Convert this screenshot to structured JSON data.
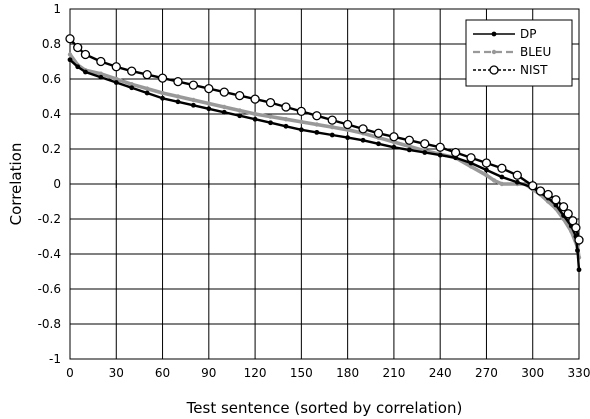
{
  "chart_data": {
    "type": "line",
    "title": "",
    "xlabel": "Test sentence (sorted by correlation)",
    "ylabel": "Correlation",
    "xlim": [
      0,
      330
    ],
    "ylim": [
      -1,
      1
    ],
    "x_ticks": [
      0,
      30,
      60,
      90,
      120,
      150,
      180,
      210,
      240,
      270,
      300,
      330
    ],
    "y_ticks": [
      -1,
      -0.8,
      -0.6,
      -0.4,
      -0.2,
      0,
      0.2,
      0.4,
      0.6,
      0.8,
      1
    ],
    "grid": true,
    "legend": "top-right",
    "series": [
      {
        "name": "DP",
        "color": "#000000",
        "marker": "filled-dot",
        "points": [
          [
            0,
            0.71
          ],
          [
            5,
            0.67
          ],
          [
            10,
            0.64
          ],
          [
            20,
            0.61
          ],
          [
            30,
            0.58
          ],
          [
            40,
            0.55
          ],
          [
            50,
            0.52
          ],
          [
            60,
            0.49
          ],
          [
            70,
            0.47
          ],
          [
            80,
            0.45
          ],
          [
            90,
            0.43
          ],
          [
            100,
            0.41
          ],
          [
            110,
            0.39
          ],
          [
            120,
            0.37
          ],
          [
            130,
            0.35
          ],
          [
            140,
            0.33
          ],
          [
            150,
            0.31
          ],
          [
            160,
            0.295
          ],
          [
            170,
            0.28
          ],
          [
            180,
            0.265
          ],
          [
            190,
            0.25
          ],
          [
            200,
            0.23
          ],
          [
            210,
            0.21
          ],
          [
            220,
            0.195
          ],
          [
            230,
            0.18
          ],
          [
            240,
            0.165
          ],
          [
            250,
            0.15
          ],
          [
            260,
            0.12
          ],
          [
            270,
            0.08
          ],
          [
            280,
            0.04
          ],
          [
            290,
            0.01
          ],
          [
            300,
            -0.02
          ],
          [
            305,
            -0.05
          ],
          [
            310,
            -0.08
          ],
          [
            315,
            -0.12
          ],
          [
            320,
            -0.18
          ],
          [
            325,
            -0.24
          ],
          [
            328,
            -0.3
          ],
          [
            329,
            -0.38
          ],
          [
            330,
            -0.49
          ]
        ]
      },
      {
        "name": "BLEU",
        "color": "#999999",
        "marker": "dash-dot",
        "points": [
          [
            0,
            0.74
          ],
          [
            5,
            0.68
          ],
          [
            10,
            0.65
          ],
          [
            20,
            0.63
          ],
          [
            30,
            0.6
          ],
          [
            40,
            0.57
          ],
          [
            50,
            0.545
          ],
          [
            60,
            0.52
          ],
          [
            70,
            0.5
          ],
          [
            80,
            0.48
          ],
          [
            90,
            0.46
          ],
          [
            100,
            0.44
          ],
          [
            110,
            0.42
          ],
          [
            120,
            0.4
          ],
          [
            130,
            0.385
          ],
          [
            140,
            0.37
          ],
          [
            150,
            0.355
          ],
          [
            160,
            0.34
          ],
          [
            170,
            0.325
          ],
          [
            180,
            0.31
          ],
          [
            190,
            0.29
          ],
          [
            200,
            0.265
          ],
          [
            210,
            0.24
          ],
          [
            220,
            0.215
          ],
          [
            230,
            0.19
          ],
          [
            240,
            0.17
          ],
          [
            250,
            0.15
          ],
          [
            260,
            0.1
          ],
          [
            270,
            0.05
          ],
          [
            275,
            0.02
          ],
          [
            280,
            0.0
          ],
          [
            290,
            0.0
          ],
          [
            295,
            0.0
          ],
          [
            300,
            -0.03
          ],
          [
            305,
            -0.06
          ],
          [
            310,
            -0.1
          ],
          [
            315,
            -0.14
          ],
          [
            320,
            -0.2
          ],
          [
            325,
            -0.27
          ],
          [
            329,
            -0.36
          ],
          [
            330,
            -0.42
          ]
        ]
      },
      {
        "name": "NIST",
        "color": "#000000",
        "marker": "open-circle",
        "points": [
          [
            0,
            0.83
          ],
          [
            5,
            0.78
          ],
          [
            10,
            0.74
          ],
          [
            20,
            0.7
          ],
          [
            30,
            0.67
          ],
          [
            40,
            0.645
          ],
          [
            50,
            0.625
          ],
          [
            60,
            0.605
          ],
          [
            70,
            0.585
          ],
          [
            80,
            0.565
          ],
          [
            90,
            0.545
          ],
          [
            100,
            0.525
          ],
          [
            110,
            0.505
          ],
          [
            120,
            0.485
          ],
          [
            130,
            0.465
          ],
          [
            140,
            0.44
          ],
          [
            150,
            0.415
          ],
          [
            160,
            0.39
          ],
          [
            170,
            0.365
          ],
          [
            180,
            0.34
          ],
          [
            190,
            0.315
          ],
          [
            200,
            0.29
          ],
          [
            210,
            0.27
          ],
          [
            220,
            0.25
          ],
          [
            230,
            0.23
          ],
          [
            240,
            0.21
          ],
          [
            250,
            0.18
          ],
          [
            260,
            0.15
          ],
          [
            270,
            0.12
          ],
          [
            280,
            0.09
          ],
          [
            290,
            0.05
          ],
          [
            300,
            -0.01
          ],
          [
            305,
            -0.04
          ],
          [
            310,
            -0.06
          ],
          [
            315,
            -0.09
          ],
          [
            320,
            -0.13
          ],
          [
            323,
            -0.17
          ],
          [
            326,
            -0.21
          ],
          [
            328,
            -0.25
          ],
          [
            330,
            -0.32
          ]
        ]
      }
    ]
  }
}
